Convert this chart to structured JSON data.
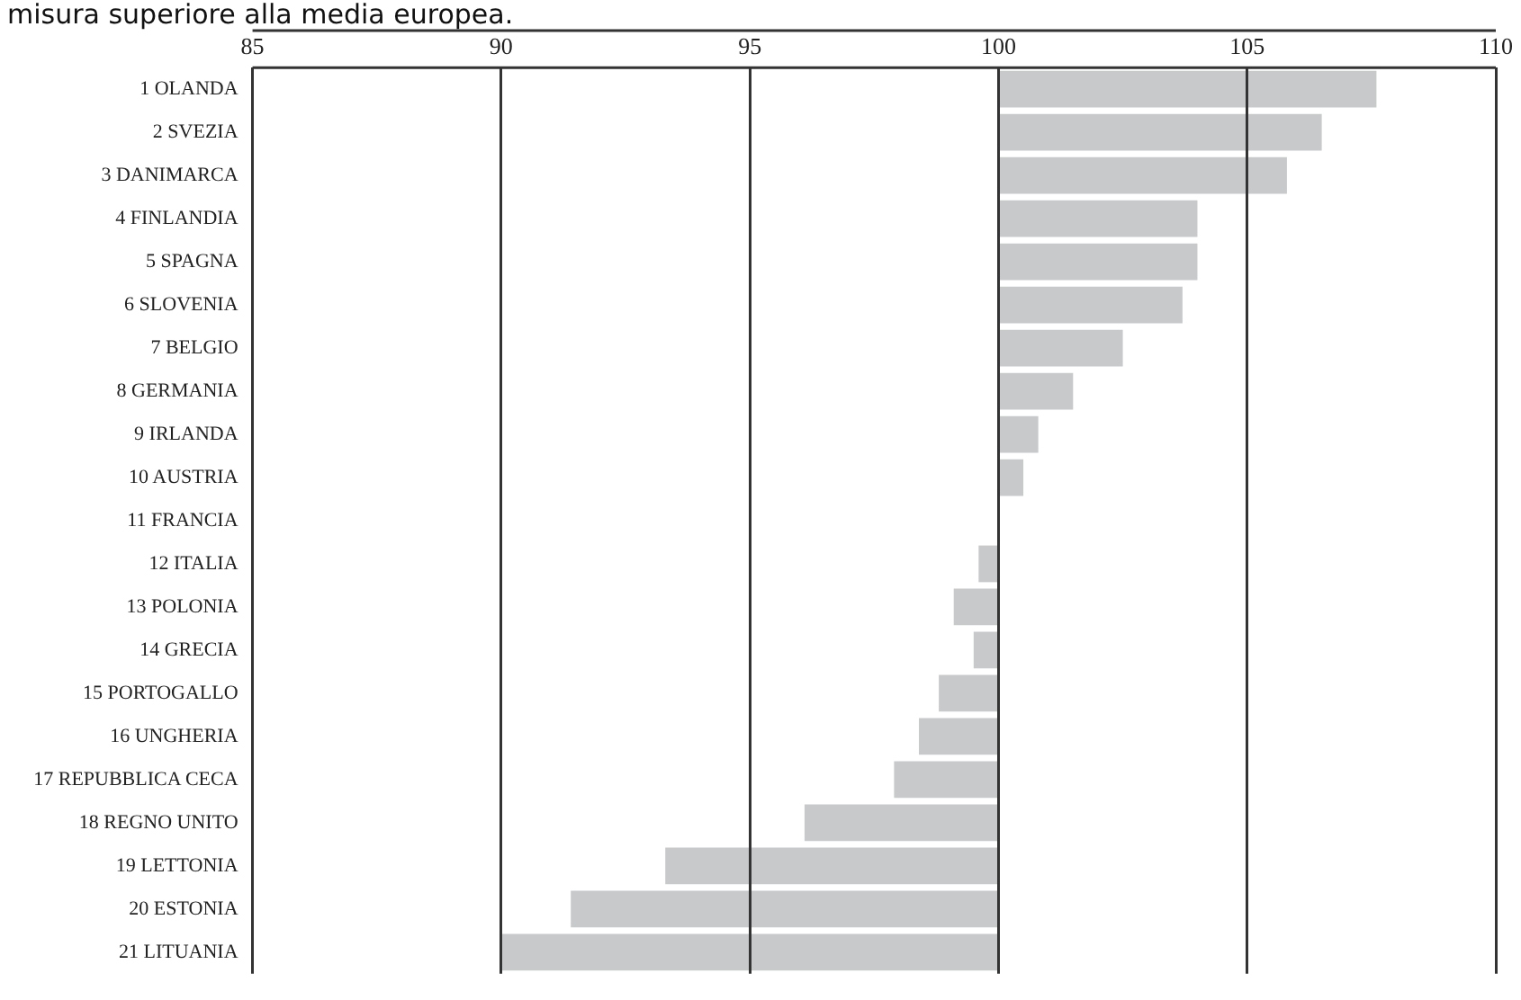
{
  "chart_data": {
    "type": "bar",
    "orientation": "horizontal",
    "title": "misura superiore alla media europea.",
    "categories": [
      "1 OLANDA",
      "2 SVEZIA",
      "3 DANIMARCA",
      "4 FINLANDIA",
      "5 SPAGNA",
      "6 SLOVENIA",
      "7 BELGIO",
      "8 GERMANIA",
      "9 IRLANDA",
      "10 AUSTRIA",
      "11 FRANCIA",
      "12 ITALIA",
      "13 POLONIA",
      "14 GRECIA",
      "15 PORTOGALLO",
      "16 UNGHERIA",
      "17 REPUBBLICA CECA",
      "18 REGNO UNITO",
      "19 LETTONIA",
      "20 ESTONIA",
      "21 LITUANIA"
    ],
    "base": [
      100,
      100,
      100,
      100,
      100,
      100,
      100,
      100,
      100,
      100,
      null,
      100,
      100,
      100,
      100,
      100,
      100,
      100,
      100,
      100,
      100
    ],
    "values": [
      7.6,
      6.5,
      5.8,
      4.0,
      4.0,
      3.7,
      2.5,
      1.5,
      0.8,
      0.5,
      null,
      -0.4,
      -0.9,
      -0.5,
      -1.2,
      -1.6,
      -2.1,
      -3.9,
      -6.7,
      -8.6,
      -10.0
    ],
    "color": "#c8c9cb",
    "xlim": [
      85,
      110
    ],
    "xticks": [
      85,
      90,
      95,
      100,
      105,
      110
    ],
    "grid": "x",
    "legend": false
  }
}
